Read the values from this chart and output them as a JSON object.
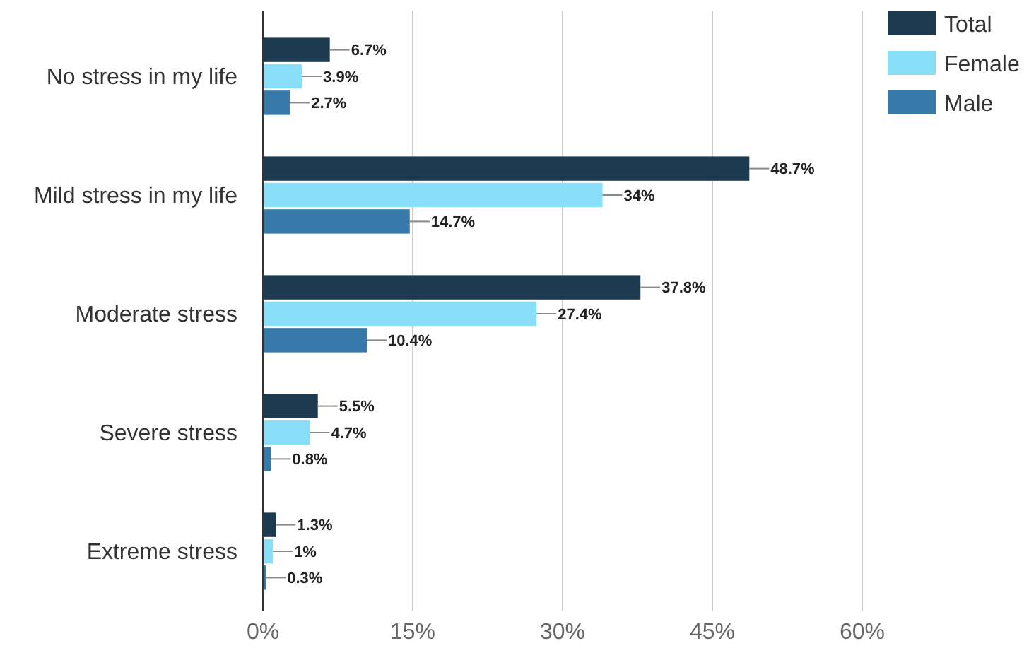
{
  "chart_data": {
    "type": "bar",
    "orientation": "horizontal",
    "categories": [
      "No stress in my life",
      "Mild stress in my life",
      "Moderate stress",
      "Severe stress",
      "Extreme stress"
    ],
    "series": [
      {
        "name": "Total",
        "color": "#1c3a50",
        "values": [
          6.7,
          48.7,
          37.8,
          5.5,
          1.3
        ],
        "value_labels": [
          "6.7%",
          "48.7%",
          "37.8%",
          "5.5%",
          "1.3%"
        ]
      },
      {
        "name": "Female",
        "color": "#8adff8",
        "values": [
          3.9,
          34,
          27.4,
          4.7,
          1
        ],
        "value_labels": [
          "3.9%",
          "34%",
          "27.4%",
          "4.7%",
          "1%"
        ]
      },
      {
        "name": "Male",
        "color": "#3779a8",
        "values": [
          2.7,
          14.7,
          10.4,
          0.8,
          0.3
        ],
        "value_labels": [
          "2.7%",
          "14.7%",
          "10.4%",
          "0.8%",
          "0.3%"
        ]
      }
    ],
    "xlim": [
      0,
      60
    ],
    "xticks": [
      {
        "value": 0,
        "label": "0%"
      },
      {
        "value": 15,
        "label": "15%"
      },
      {
        "value": 30,
        "label": "30%"
      },
      {
        "value": 45,
        "label": "45%"
      },
      {
        "value": 60,
        "label": "60%"
      }
    ],
    "grid": "x",
    "legend": "top right"
  }
}
